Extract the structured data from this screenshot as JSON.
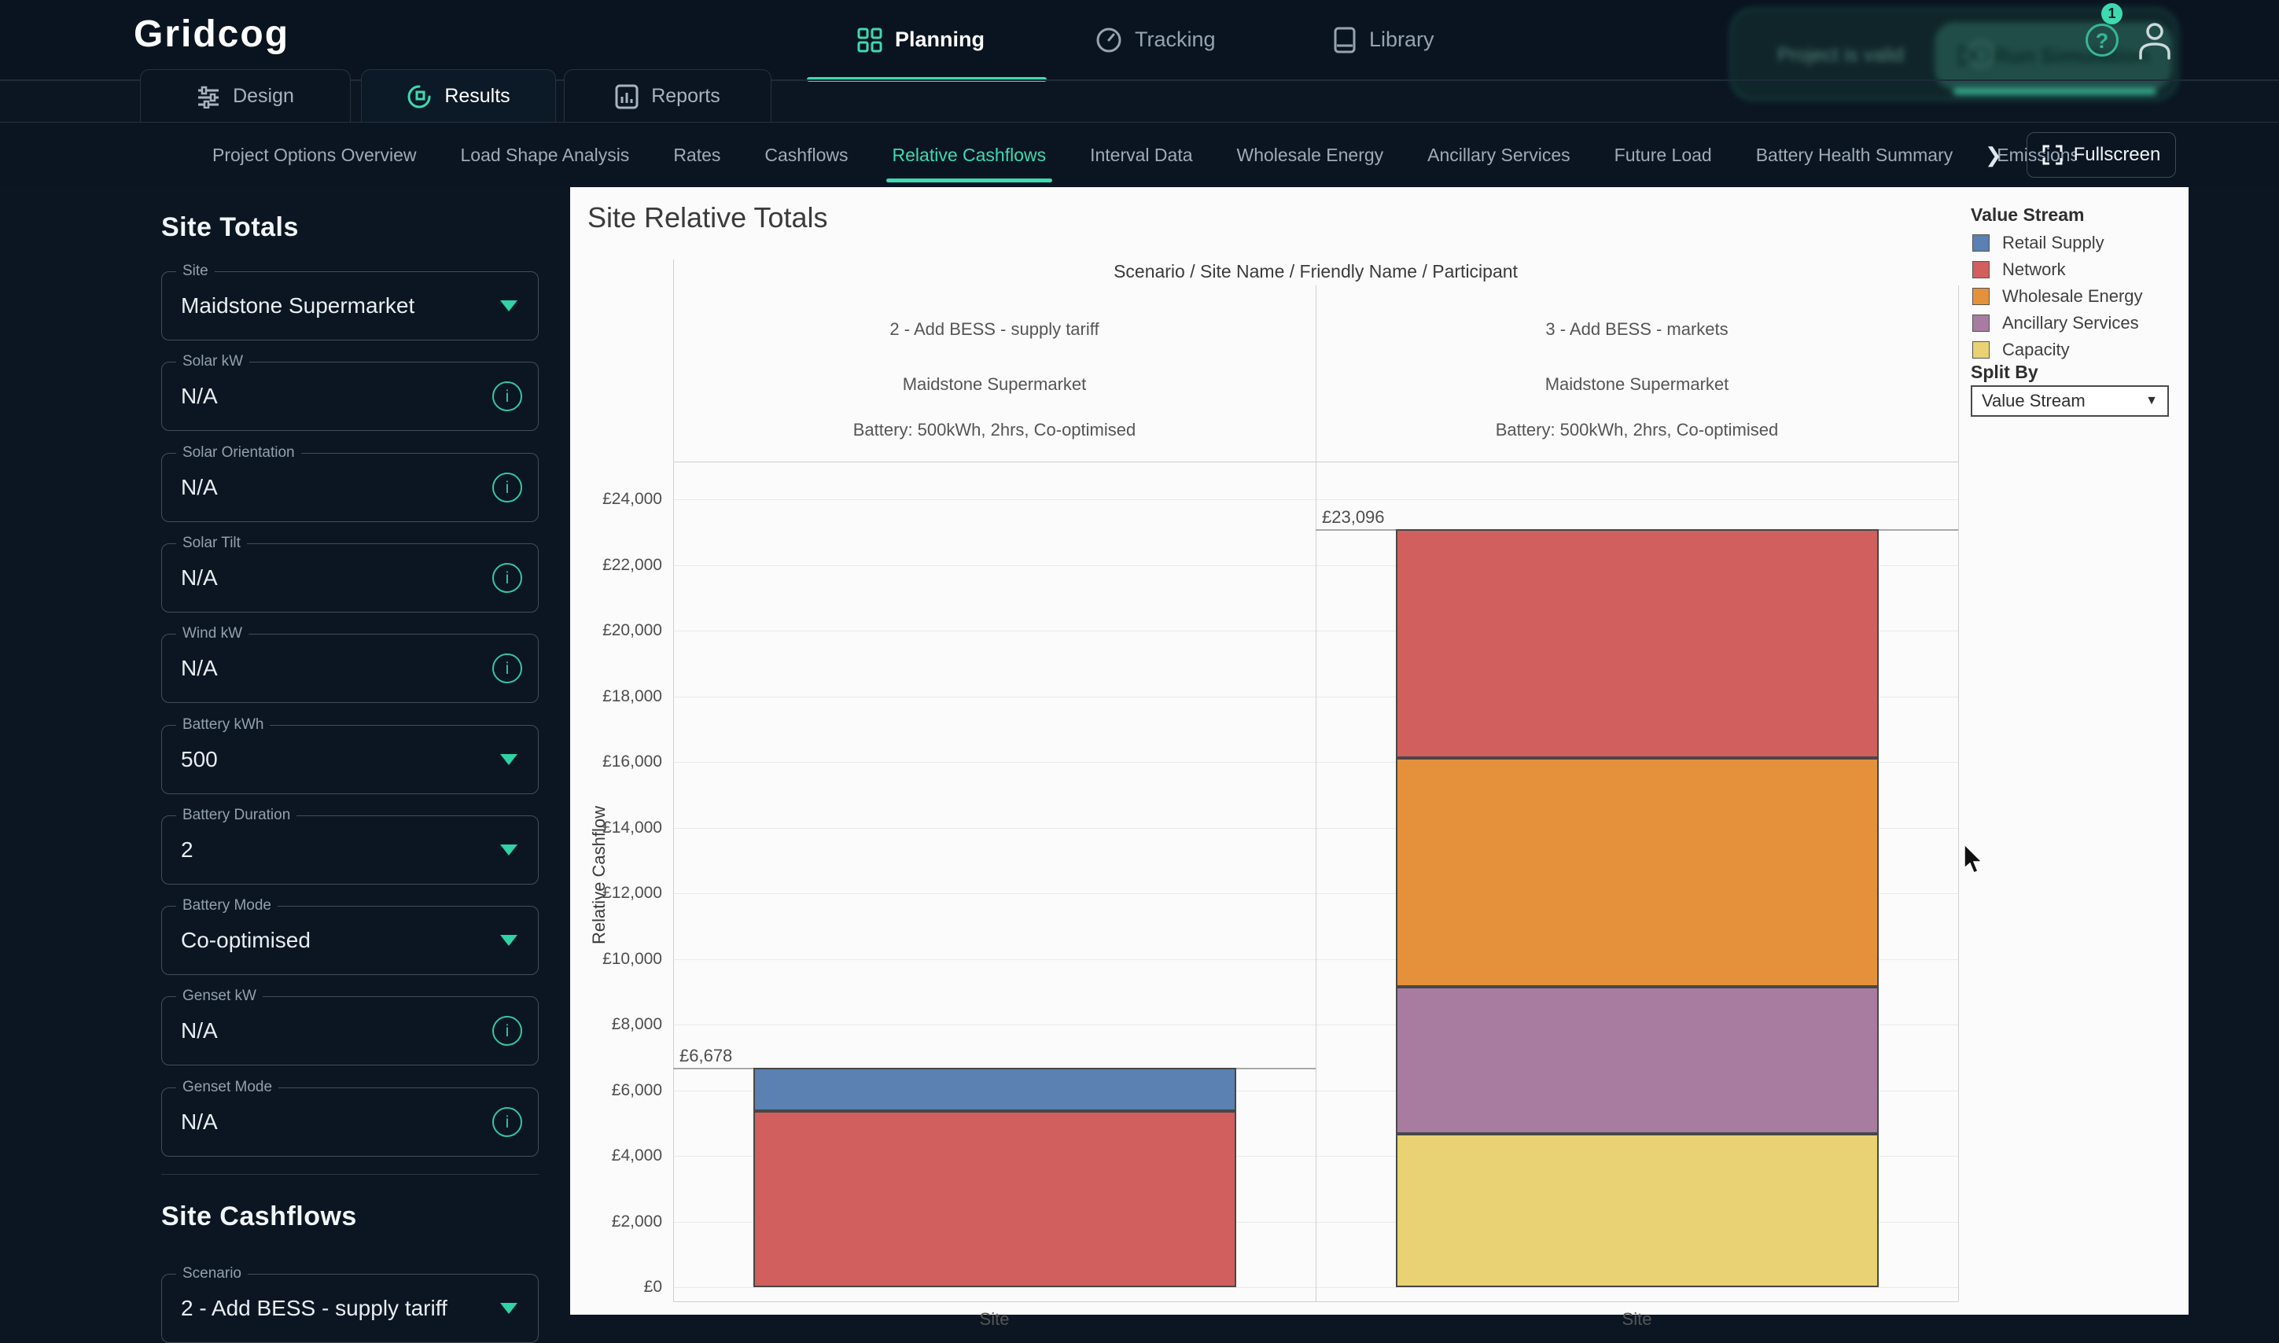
{
  "app": {
    "logo_text": "Gridcog",
    "accent_color": "#3fd9b0"
  },
  "top_nav": {
    "items": [
      {
        "label": "Planning",
        "active": true
      },
      {
        "label": "Tracking",
        "active": false
      },
      {
        "label": "Library",
        "active": false
      }
    ],
    "help_badge_count": "1",
    "ghost": {
      "status_text": "Project is valid",
      "run_button_label": "Run Simulation"
    }
  },
  "result_tabs": [
    {
      "label": "Design",
      "active": false
    },
    {
      "label": "Results",
      "active": true
    },
    {
      "label": "Reports",
      "active": false
    }
  ],
  "subtabs": {
    "items": [
      {
        "label": "Project Options Overview",
        "active": false
      },
      {
        "label": "Load Shape Analysis",
        "active": false
      },
      {
        "label": "Rates",
        "active": false
      },
      {
        "label": "Cashflows",
        "active": false
      },
      {
        "label": "Relative Cashflows",
        "active": true
      },
      {
        "label": "Interval Data",
        "active": false
      },
      {
        "label": "Wholesale Energy",
        "active": false
      },
      {
        "label": "Ancillary Services",
        "active": false
      },
      {
        "label": "Future Load",
        "active": false
      },
      {
        "label": "Battery Health Summary",
        "active": false
      },
      {
        "label": "Emissions",
        "active": false,
        "clipped": true
      }
    ],
    "more_chevron": "❯",
    "fullscreen_label": "Fullscreen"
  },
  "sidebar": {
    "section1_title": "Site Totals",
    "fields": [
      {
        "label": "Site",
        "value": "Maidstone Supermarket",
        "trailing": "caret"
      },
      {
        "label": "Solar kW",
        "value": "N/A",
        "trailing": "info"
      },
      {
        "label": "Solar Orientation",
        "value": "N/A",
        "trailing": "info"
      },
      {
        "label": "Solar Tilt",
        "value": "N/A",
        "trailing": "info"
      },
      {
        "label": "Wind kW",
        "value": "N/A",
        "trailing": "info"
      },
      {
        "label": "Battery kWh",
        "value": "500",
        "trailing": "caret"
      },
      {
        "label": "Battery Duration",
        "value": "2",
        "trailing": "caret"
      },
      {
        "label": "Battery Mode",
        "value": "Co-optimised",
        "trailing": "caret"
      },
      {
        "label": "Genset kW",
        "value": "N/A",
        "trailing": "info"
      },
      {
        "label": "Genset Mode",
        "value": "N/A",
        "trailing": "info"
      }
    ],
    "section2_title": "Site Cashflows",
    "scenario_field": {
      "label": "Scenario",
      "value": "2 - Add BESS - supply tariff",
      "trailing": "caret"
    }
  },
  "chart_data": {
    "type": "bar",
    "stacked": true,
    "title": "Site Relative Totals",
    "col_header": "Scenario / Site Name / Friendly Name / Participant",
    "ylabel": "Relative Cashflow",
    "xlabel": "Site",
    "ylim": [
      0,
      25200
    ],
    "grid": true,
    "legend_position": "right",
    "yticks": [
      {
        "v": 0,
        "label": "£0"
      },
      {
        "v": 2000,
        "label": "£2,000"
      },
      {
        "v": 4000,
        "label": "£4,000"
      },
      {
        "v": 6000,
        "label": "£6,000"
      },
      {
        "v": 8000,
        "label": "£8,000"
      },
      {
        "v": 10000,
        "label": "£10,000"
      },
      {
        "v": 12000,
        "label": "£12,000"
      },
      {
        "v": 14000,
        "label": "£14,000"
      },
      {
        "v": 16000,
        "label": "£16,000"
      },
      {
        "v": 18000,
        "label": "£18,000"
      },
      {
        "v": 20000,
        "label": "£20,000"
      },
      {
        "v": 22000,
        "label": "£22,000"
      },
      {
        "v": 24000,
        "label": "£24,000"
      }
    ],
    "stream_colors": {
      "Retail Supply": "#5b80b2",
      "Network": "#d05f5d",
      "Wholesale Energy": "#e5913c",
      "Ancillary Services": "#a87ca0",
      "Capacity": "#e8d274"
    },
    "columns": [
      {
        "scenario": "2 - Add BESS - supply tariff",
        "site": "Maidstone Supermarket",
        "battery": "Battery: 500kWh, 2hrs, Co-optimised",
        "x_category": "Site",
        "total": 6678,
        "total_label": "£6,678",
        "segments_bottom_to_top": [
          {
            "stream": "Network",
            "value": 5378
          },
          {
            "stream": "Retail Supply",
            "value": 1300
          }
        ]
      },
      {
        "scenario": "3 - Add BESS - markets",
        "site": "Maidstone Supermarket",
        "battery": "Battery: 500kWh, 2hrs, Co-optimised",
        "x_category": "Site",
        "total": 23096,
        "total_label": "£23,096",
        "segments_bottom_to_top": [
          {
            "stream": "Capacity",
            "value": 4671
          },
          {
            "stream": "Ancillary Services",
            "value": 4480
          },
          {
            "stream": "Wholesale Energy",
            "value": 6975
          },
          {
            "stream": "Network",
            "value": 6970
          }
        ]
      }
    ],
    "legend": {
      "title": "Value Stream",
      "entries": [
        "Retail Supply",
        "Network",
        "Wholesale Energy",
        "Ancillary Services",
        "Capacity"
      ]
    },
    "split_by": {
      "label": "Split By",
      "value": "Value Stream"
    }
  }
}
